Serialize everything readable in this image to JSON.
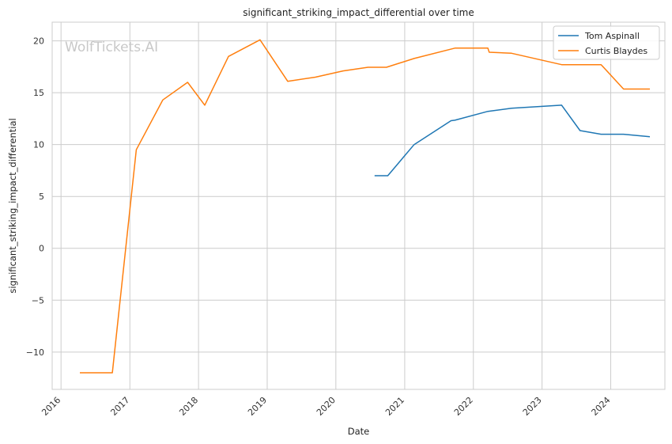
{
  "chart_data": {
    "type": "line",
    "title": "significant_striking_impact_differential over time",
    "xlabel": "Date",
    "ylabel": "significant_striking_impact_differential",
    "watermark": "WolfTickets.AI",
    "x_ticks": [
      "2016",
      "2017",
      "2018",
      "2019",
      "2020",
      "2021",
      "2022",
      "2023",
      "2024"
    ],
    "y_ticks": [
      "20",
      "15",
      "10",
      "5",
      "0",
      "−10"
    ],
    "y_tick_values": [
      20,
      15,
      10,
      5,
      0,
      -10
    ],
    "y_ticks_extra": [
      {
        "label": "−5",
        "value": -5
      }
    ],
    "xlim": [
      "2015-11-15",
      "2024-10-15"
    ],
    "ylim": [
      -13.6,
      21.8
    ],
    "grid": true,
    "legend_position": "top-right",
    "series": [
      {
        "name": "Tom Aspinall",
        "color": "#1f77b4",
        "points": [
          [
            "2020-07-25",
            7.0
          ],
          [
            "2020-10-03",
            7.0
          ],
          [
            "2021-02-20",
            10.0
          ],
          [
            "2021-09-04",
            12.3
          ],
          [
            "2021-09-25",
            12.35
          ],
          [
            "2022-03-19",
            13.2
          ],
          [
            "2022-07-23",
            13.5
          ],
          [
            "2023-04-15",
            13.8
          ],
          [
            "2023-07-22",
            11.35
          ],
          [
            "2023-11-11",
            11.0
          ],
          [
            "2024-03-09",
            11.0
          ],
          [
            "2024-07-27",
            10.75
          ]
        ]
      },
      {
        "name": "Curtis Blaydes",
        "color": "#ff7f0e",
        "points": [
          [
            "2016-04-10",
            -12.0
          ],
          [
            "2016-09-30",
            -12.0
          ],
          [
            "2017-02-04",
            9.5
          ],
          [
            "2017-06-25",
            14.3
          ],
          [
            "2017-11-04",
            16.0
          ],
          [
            "2018-02-03",
            13.8
          ],
          [
            "2018-06-09",
            18.5
          ],
          [
            "2018-11-24",
            20.1
          ],
          [
            "2019-04-20",
            16.1
          ],
          [
            "2019-09-14",
            16.5
          ],
          [
            "2020-02-08",
            17.1
          ],
          [
            "2020-06-20",
            17.45
          ],
          [
            "2020-09-26",
            17.45
          ],
          [
            "2021-02-20",
            18.3
          ],
          [
            "2021-09-25",
            19.3
          ],
          [
            "2022-03-19",
            19.3
          ],
          [
            "2022-03-26",
            18.9
          ],
          [
            "2022-07-23",
            18.8
          ],
          [
            "2023-04-15",
            17.7
          ],
          [
            "2023-11-11",
            17.7
          ],
          [
            "2024-03-09",
            15.35
          ],
          [
            "2024-07-27",
            15.35
          ]
        ]
      }
    ]
  }
}
